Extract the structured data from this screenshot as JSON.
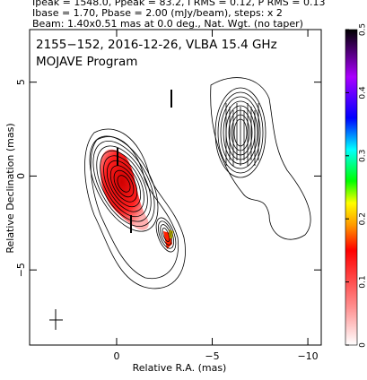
{
  "chart_data": {
    "type": "contour",
    "header": [
      "Ipeak = 1548.0, Ppeak = 83.2, I RMS = 0.12, P RMS = 0.13",
      "Ibase = 1.70, Pbase = 2.00 (mJy/beam), steps: x 2",
      "Beam: 1.40x0.51 mas at 0.0 deg., Nat. Wgt. (no taper)"
    ],
    "title": "2155−152, 2016-12-26, VLBA 15.4 GHz",
    "subtitle": "MOJAVE Program",
    "x_label": "Relative R.A. (mas)",
    "y_label": "Relative Declination (mas)",
    "xlim": [
      4.55,
      -10.7
    ],
    "xticks": [
      0,
      {
        "value": -5,
        "label": "−5"
      },
      {
        "value": -10,
        "label": "−10"
      }
    ],
    "ylim": [
      -9,
      7.8
    ],
    "yticks": [
      {
        "value": -5,
        "label": "−5"
      },
      0,
      5
    ],
    "colorbar": {
      "lim": [
        0,
        0.5
      ],
      "ticks": [
        0,
        0.1,
        0.2,
        0.3,
        0.4,
        0.5
      ]
    }
  }
}
